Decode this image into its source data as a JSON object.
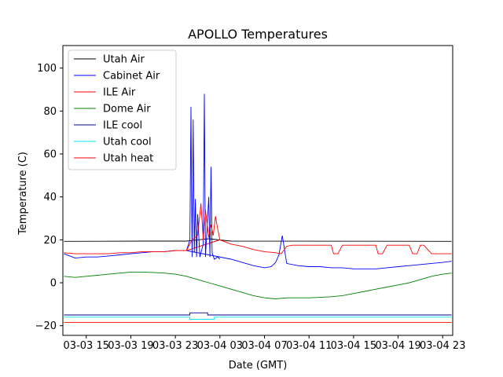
{
  "chart_data": {
    "type": "line",
    "title": "APOLLO Temperatures",
    "xlabel": "Date (GMT)",
    "ylabel": "Temperature (C)",
    "xlim_hours": [
      12.9,
      47.9
    ],
    "ylim": [
      -24.5,
      110.5
    ],
    "grid": false,
    "legend_position": "top-left",
    "yticks": [
      {
        "value": -20,
        "label": "−20"
      },
      {
        "value": 0,
        "label": "0"
      },
      {
        "value": 20,
        "label": "20"
      },
      {
        "value": 40,
        "label": "40"
      },
      {
        "value": 60,
        "label": "60"
      },
      {
        "value": 80,
        "label": "80"
      },
      {
        "value": 100,
        "label": "100"
      }
    ],
    "xticks": [
      {
        "hour": 15,
        "label": "03-03 15"
      },
      {
        "hour": 19,
        "label": "03-03 19"
      },
      {
        "hour": 23,
        "label": "03-03 23"
      },
      {
        "hour": 27,
        "label": "03-04 03"
      },
      {
        "hour": 31,
        "label": "03-04 07"
      },
      {
        "hour": 35,
        "label": "03-04 11"
      },
      {
        "hour": 39,
        "label": "03-04 15"
      },
      {
        "hour": 43,
        "label": "03-04 19"
      },
      {
        "hour": 47,
        "label": "03-04 23"
      }
    ],
    "series": [
      {
        "name": "Utah Air",
        "color": "#000000",
        "x": [
          13.0,
          20.0,
          24.0,
          25.0,
          26.0,
          28.0,
          47.8
        ],
        "y": [
          19.3,
          19.4,
          19.4,
          20.0,
          20.5,
          19.4,
          19.3
        ]
      },
      {
        "name": "Cabinet Air",
        "color": "#0000ff",
        "x": [
          13.0,
          14.0,
          15.0,
          16.0,
          17.0,
          18.0,
          19.0,
          20.0,
          21.0,
          22.0,
          23.0,
          24.0,
          28.0,
          29.0,
          30.0,
          31.0,
          31.6,
          32.0,
          32.3,
          32.6,
          33.0,
          34.0,
          35.0,
          36.0,
          37.0,
          38.0,
          39.0,
          40.0,
          41.0,
          42.0,
          43.0,
          44.0,
          45.0,
          46.0,
          47.0,
          47.8
        ],
        "y": [
          13.5,
          11.5,
          12.0,
          12.0,
          12.5,
          13.0,
          13.5,
          14.0,
          14.5,
          14.5,
          15.0,
          15.0,
          11.0,
          9.5,
          8.0,
          7.0,
          7.5,
          9.5,
          13.0,
          22.0,
          9.0,
          8.0,
          7.5,
          7.5,
          7.0,
          7.0,
          6.5,
          6.5,
          6.5,
          7.0,
          7.5,
          8.0,
          8.5,
          9.0,
          9.5,
          10.0
        ]
      },
      {
        "name": "ILE Air",
        "color": "#ff0000",
        "x": [
          13.0,
          14.0,
          15.0,
          16.0,
          17.0,
          18.0,
          19.0,
          20.0,
          21.0,
          22.0,
          23.0,
          24.0,
          27.0,
          28.0,
          29.0,
          30.0,
          31.0,
          32.0,
          32.5,
          33.0,
          33.5,
          34.0,
          35.0,
          36.0,
          37.0,
          37.2,
          37.6,
          38.0,
          39.0,
          40.0,
          41.0,
          41.2,
          41.6,
          42.0,
          43.0,
          44.0,
          44.3,
          44.7,
          45.0,
          45.3,
          46.0,
          47.8
        ],
        "y": [
          14.0,
          13.5,
          13.5,
          13.5,
          13.5,
          14.0,
          14.0,
          14.5,
          14.5,
          14.5,
          15.0,
          15.0,
          20.0,
          18.0,
          17.0,
          15.5,
          14.5,
          14.0,
          13.5,
          17.0,
          17.5,
          17.5,
          17.5,
          17.5,
          17.5,
          13.5,
          13.5,
          17.5,
          17.5,
          17.5,
          17.5,
          13.5,
          13.5,
          17.5,
          17.5,
          17.5,
          13.5,
          13.5,
          17.5,
          17.5,
          13.5,
          13.5
        ]
      },
      {
        "name": "Dome Air",
        "color": "#008000",
        "x": [
          13.0,
          14.0,
          15.0,
          16.0,
          17.0,
          18.0,
          19.0,
          20.0,
          21.0,
          22.0,
          23.0,
          24.0,
          25.0,
          26.0,
          27.0,
          28.0,
          29.0,
          30.0,
          31.0,
          32.0,
          33.0,
          34.0,
          35.0,
          36.0,
          37.0,
          38.0,
          39.0,
          40.0,
          41.0,
          42.0,
          43.0,
          44.0,
          45.0,
          46.0,
          47.0,
          47.8
        ],
        "y": [
          3.0,
          2.5,
          3.0,
          3.5,
          4.0,
          4.5,
          5.0,
          5.0,
          4.8,
          4.5,
          4.0,
          3.0,
          1.5,
          0.0,
          -1.5,
          -3.0,
          -4.5,
          -6.0,
          -7.0,
          -7.5,
          -7.0,
          -7.0,
          -7.0,
          -6.8,
          -6.5,
          -6.0,
          -5.0,
          -4.0,
          -3.0,
          -2.0,
          -1.0,
          0.0,
          1.5,
          3.0,
          4.0,
          4.5
        ]
      },
      {
        "name": "ILE cool",
        "color": "#00008b",
        "x": [
          13.0,
          24.3,
          24.3,
          25.9,
          25.9,
          47.8
        ],
        "y": [
          -15.0,
          -15.0,
          -14.0,
          -14.0,
          -15.0,
          -15.0
        ]
      },
      {
        "name": "Utah cool",
        "color": "#00e5ee",
        "x": [
          13.0,
          24.3,
          24.3,
          26.5,
          26.5,
          47.8
        ],
        "y": [
          -16.0,
          -16.0,
          -17.0,
          -17.0,
          -16.0,
          -16.0
        ]
      },
      {
        "name": "Utah heat",
        "color": "#ff0000",
        "x": [
          13.0,
          47.8
        ],
        "y": [
          -18.5,
          -18.5
        ]
      }
    ],
    "spikes": [
      {
        "series": "Cabinet Air",
        "color": "#0000ff",
        "x": [
          24.0,
          24.3,
          24.4,
          24.5,
          24.6,
          24.7,
          24.8,
          24.9,
          25.0,
          25.2,
          25.5,
          25.6,
          25.7,
          26.0,
          26.1,
          26.2,
          26.3,
          26.5,
          26.8,
          27.0
        ],
        "y": [
          15.0,
          20.0,
          82.0,
          12.0,
          76.0,
          14.0,
          39.0,
          12.0,
          32.0,
          12.0,
          18.0,
          88.0,
          12.0,
          40.0,
          12.0,
          54.0,
          14.0,
          11.0,
          12.0,
          11.0
        ]
      },
      {
        "series": "ILE Air",
        "color": "#ff0000",
        "x": [
          24.0,
          24.5,
          25.0,
          25.3,
          25.5,
          25.7,
          26.0,
          26.2,
          26.4,
          26.6,
          26.8,
          27.0
        ],
        "y": [
          15.0,
          20.0,
          22.0,
          37.0,
          20.0,
          34.0,
          21.0,
          27.0,
          22.0,
          31.0,
          25.0,
          20.0
        ]
      }
    ]
  }
}
